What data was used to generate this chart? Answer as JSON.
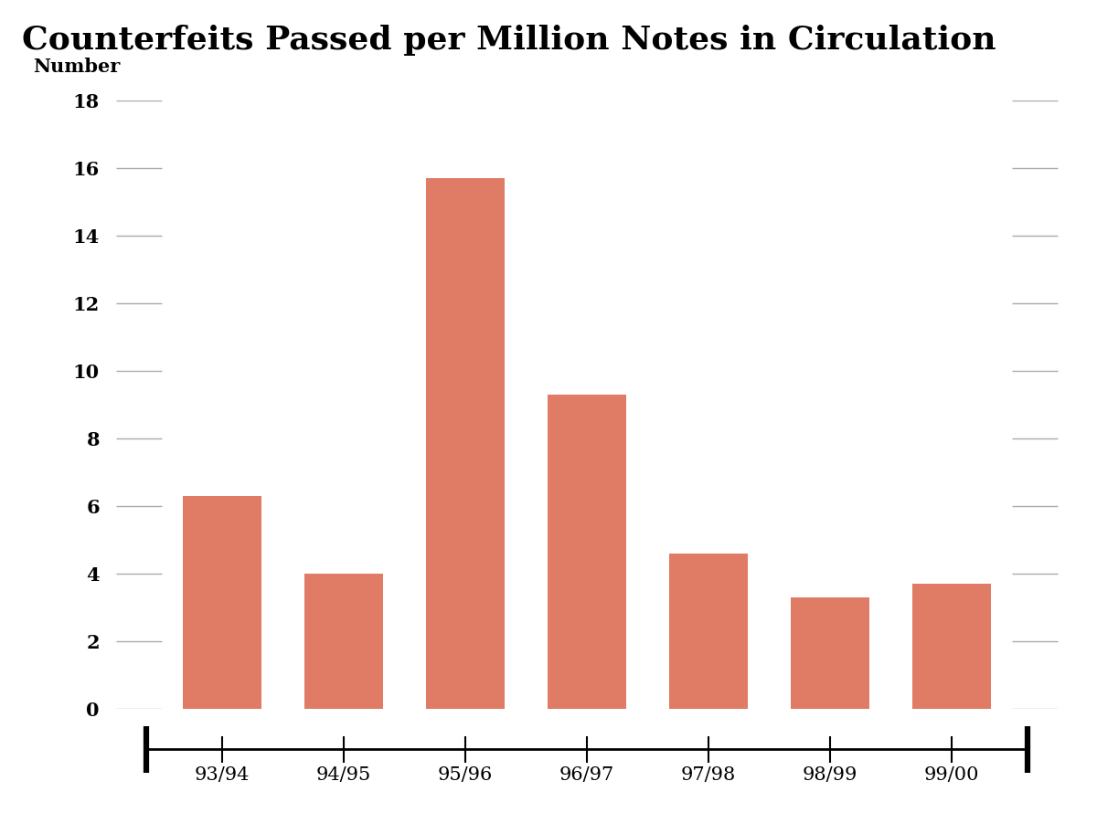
{
  "title": "Counterfeits Passed per Million Notes in Circulation",
  "ylabel": "Number",
  "categories": [
    "93/94",
    "94/95",
    "95/96",
    "96/97",
    "97/98",
    "98/99",
    "99/00"
  ],
  "values": [
    6.3,
    4.0,
    15.7,
    9.3,
    4.6,
    3.3,
    3.7
  ],
  "bar_color": "#e07b65",
  "background_color": "#ffffff",
  "ylim": [
    0,
    18
  ],
  "yticks": [
    0,
    2,
    4,
    6,
    8,
    10,
    12,
    14,
    16,
    18
  ],
  "grid_color": "#aaaaaa",
  "title_fontsize": 26,
  "ylabel_fontsize": 15,
  "tick_fontsize": 15,
  "xtick_fontsize": 15
}
